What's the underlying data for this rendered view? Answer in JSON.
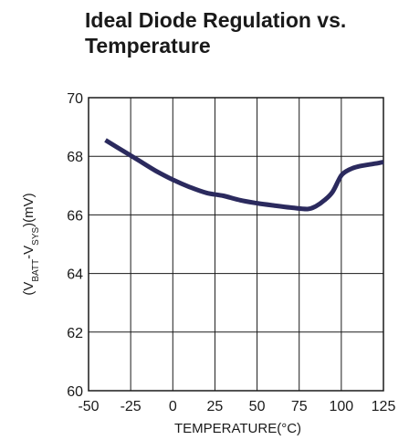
{
  "fragments": {
    "left_title_tail": "re",
    "bottom_left_tick_tail": "5"
  },
  "chart_data": {
    "type": "line",
    "title": "Ideal Diode Regulation vs.\nTemperature",
    "xlabel": "TEMPERATURE(°C)",
    "ylabel": {
      "prefix": "(V",
      "sub1": "BATT",
      "mid": "-V",
      "sub2": "SYS",
      "suffix": ")(mV)"
    },
    "xlim": [
      -50,
      125
    ],
    "ylim": [
      60,
      70
    ],
    "xticks": [
      -50,
      -25,
      0,
      25,
      50,
      75,
      100,
      125
    ],
    "yticks": [
      60,
      62,
      64,
      66,
      68,
      70
    ],
    "grid": true,
    "series": [
      {
        "color": "#2b2a5e",
        "x": [
          -40,
          -30,
          -20,
          -10,
          0,
          10,
          20,
          30,
          40,
          50,
          60,
          70,
          80,
          85,
          90,
          95,
          100,
          105,
          110,
          120,
          125
        ],
        "y": [
          68.55,
          68.2,
          67.85,
          67.5,
          67.2,
          66.95,
          66.75,
          66.65,
          66.5,
          66.4,
          66.32,
          66.25,
          66.2,
          66.3,
          66.5,
          66.8,
          67.35,
          67.55,
          67.65,
          67.75,
          67.8
        ]
      }
    ]
  }
}
